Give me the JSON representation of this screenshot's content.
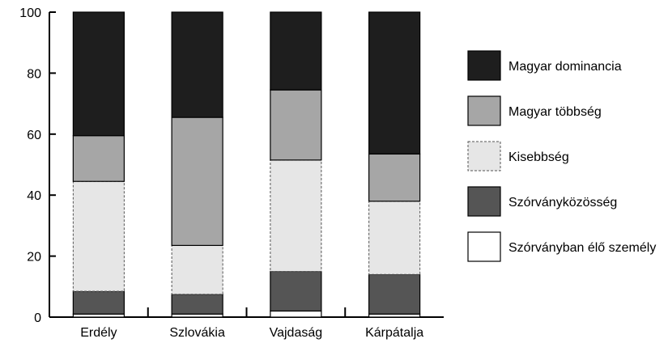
{
  "chart_data": {
    "type": "bar",
    "stacked": true,
    "categories": [
      "Erdély",
      "Szlovákia",
      "Vajdaság",
      "Kárpátalja"
    ],
    "series": [
      {
        "name": "Szórványban élő személy",
        "values": [
          1,
          1,
          2,
          1
        ],
        "color": "#ffffff",
        "dashed": false
      },
      {
        "name": "Szórványközösség",
        "values": [
          7.5,
          6.5,
          13,
          13
        ],
        "color": "#555555",
        "dashed": false
      },
      {
        "name": "Kisebbség",
        "values": [
          36,
          16,
          36.5,
          24
        ],
        "color": "#e6e6e6",
        "dashed": true
      },
      {
        "name": "Magyar többség",
        "values": [
          15,
          42,
          23,
          15.5
        ],
        "color": "#a6a6a6",
        "dashed": false
      },
      {
        "name": "Magyar dominancia",
        "values": [
          40.5,
          34.5,
          25.5,
          46.5
        ],
        "color": "#1e1e1e",
        "dashed": false
      }
    ],
    "legend_order": [
      "Magyar dominancia",
      "Magyar többség",
      "Kisebbség",
      "Szórványközösség",
      "Szórványban élő személy"
    ],
    "yticks": [
      0,
      20,
      40,
      60,
      80,
      100
    ],
    "ylim": [
      0,
      100
    ],
    "legend_position": "right",
    "grid": false
  }
}
